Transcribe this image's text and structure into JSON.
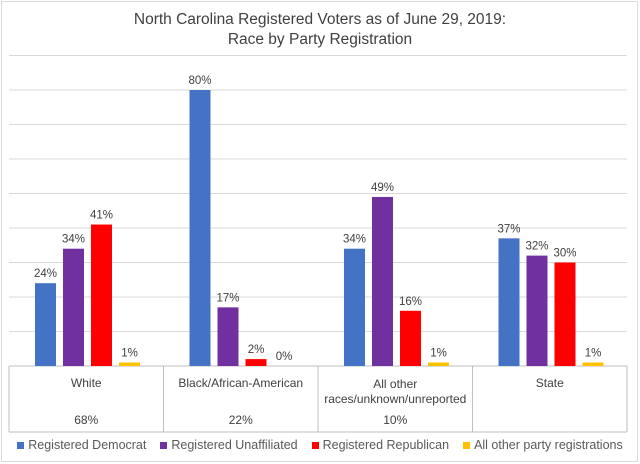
{
  "chart_data": {
    "type": "bar",
    "title_line1": "North Carolina Registered Voters as of June 29, 2019:",
    "title_line2": "Race by Party Registration",
    "categories": [
      {
        "label_lines": [
          "White"
        ],
        "share": "68%"
      },
      {
        "label_lines": [
          "Black/African-American"
        ],
        "share": "22%"
      },
      {
        "label_lines": [
          "All other",
          "races/unknown/unreported"
        ],
        "share": "10%"
      },
      {
        "label_lines": [
          "State"
        ],
        "share": ""
      }
    ],
    "series": [
      {
        "name": "Registered Democrat",
        "color": "#4472C4",
        "values": [
          24,
          80,
          34,
          37
        ]
      },
      {
        "name": "Registered Unaffiliated",
        "color": "#7030A0",
        "values": [
          34,
          17,
          49,
          32
        ]
      },
      {
        "name": "Registered Republican",
        "color": "#FF0000",
        "values": [
          41,
          2,
          16,
          30
        ]
      },
      {
        "name": "All other party registrations",
        "color": "#FFC000",
        "values": [
          1,
          0,
          1,
          1
        ]
      }
    ],
    "value_suffix": "%",
    "ylim": [
      0,
      90
    ],
    "gridlines": true
  }
}
